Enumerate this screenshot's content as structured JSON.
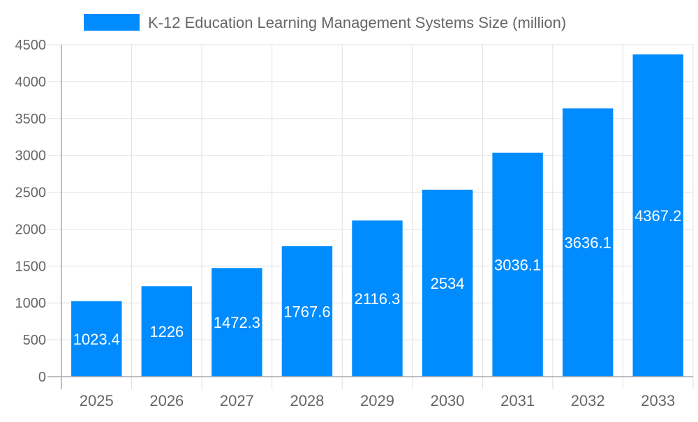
{
  "chart_data": {
    "type": "bar",
    "title": "",
    "xlabel": "",
    "ylabel": "",
    "legend": {
      "position": "top",
      "entries": [
        "K-12 Education Learning Management Systems Size (million)"
      ]
    },
    "categories": [
      "2025",
      "2026",
      "2027",
      "2028",
      "2029",
      "2030",
      "2031",
      "2032",
      "2033"
    ],
    "series": [
      {
        "name": "K-12 Education Learning Management Systems Size (million)",
        "values": [
          1023.4,
          1226,
          1472.3,
          1767.6,
          2116.3,
          2534,
          3036.1,
          3636.1,
          4367.2
        ],
        "color": "#008cff"
      }
    ],
    "ylim": [
      0,
      4500
    ],
    "yticks": [
      0,
      500,
      1000,
      1500,
      2000,
      2500,
      3000,
      3500,
      4000,
      4500
    ],
    "grid": true,
    "data_labels": true
  }
}
